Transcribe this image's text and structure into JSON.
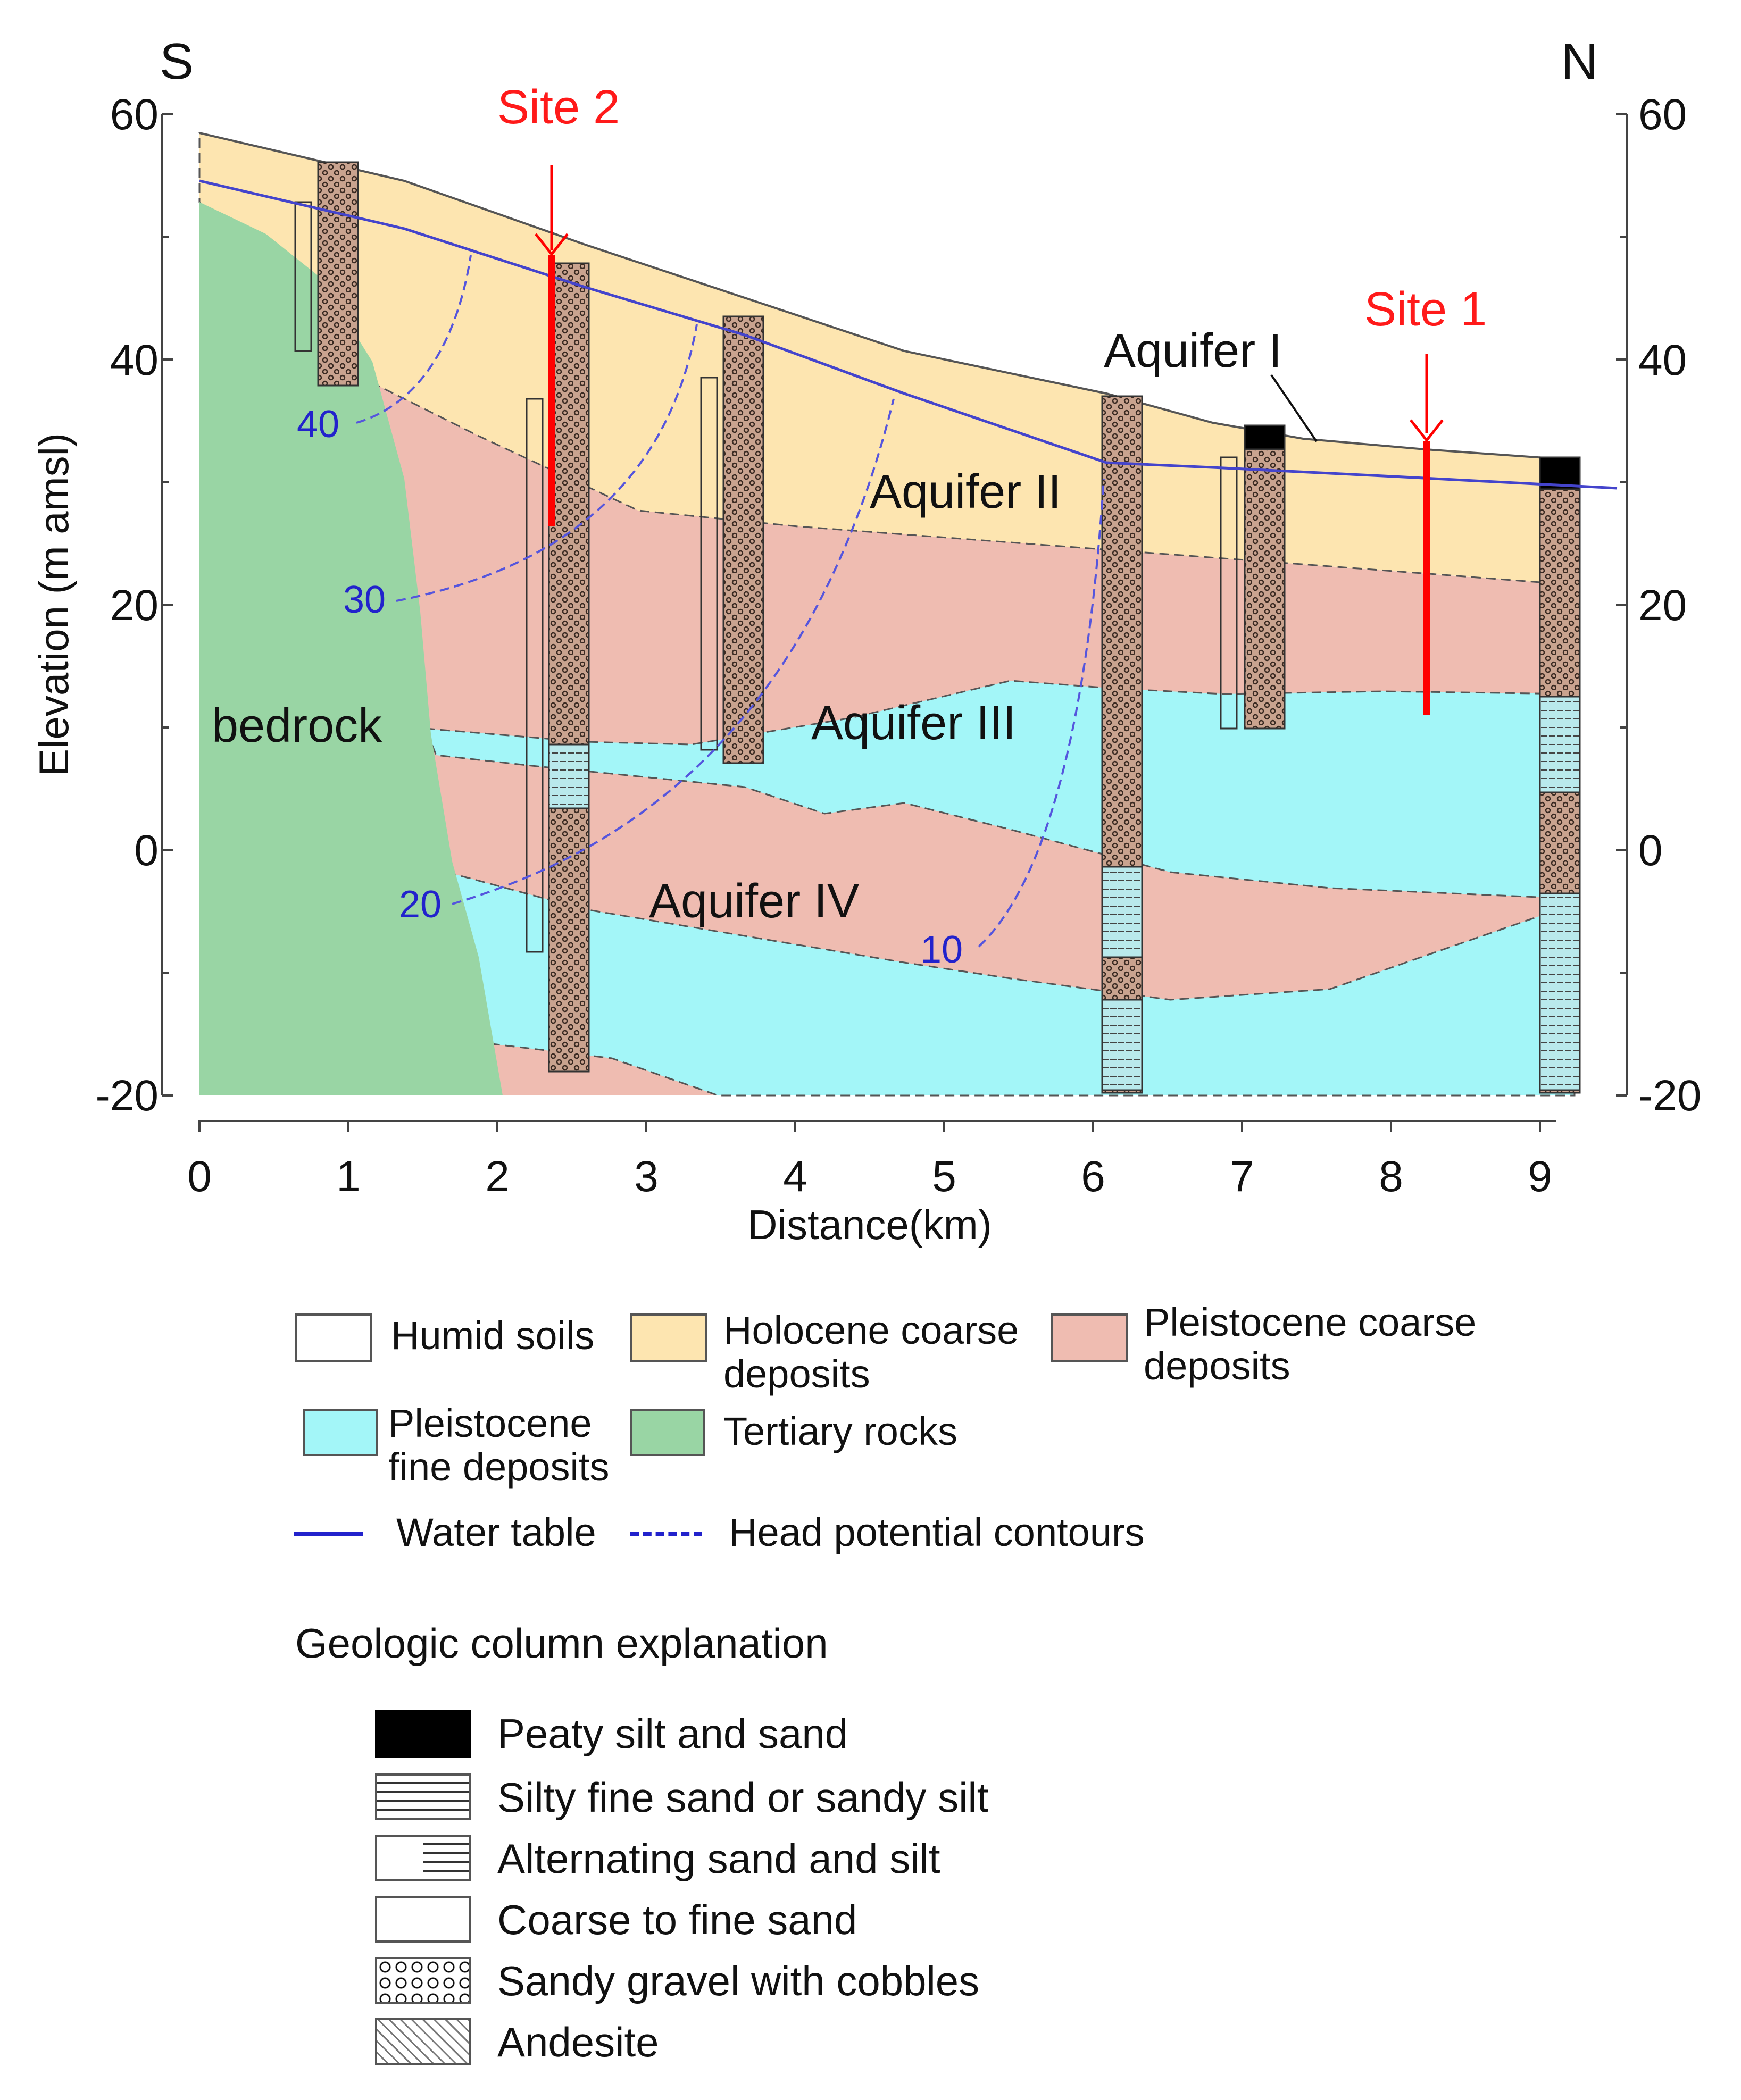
{
  "diagram": {
    "direction_left": "S",
    "direction_right": "N",
    "y_axis_label": "Elevation (m amsl)",
    "x_axis_label": "Distance(km)",
    "y_ticks_left": [
      "60",
      "40",
      "20",
      "0",
      "-20"
    ],
    "y_ticks_right": [
      "60",
      "40",
      "20",
      "0",
      "-20"
    ],
    "x_ticks": [
      "0",
      "1",
      "2",
      "3",
      "4",
      "5",
      "6",
      "7",
      "8",
      "9"
    ],
    "sites": {
      "site2": "Site 2",
      "site1": "Site 1"
    },
    "aquifers": {
      "a1": "Aquifer I",
      "a2": "Aquifer II",
      "a3": "Aquifer III",
      "a4": "Aquifer IV"
    },
    "bedrock_label": "bedrock",
    "contours": [
      "40",
      "30",
      "20",
      "10"
    ],
    "colors": {
      "holocene": "#fde5b0",
      "pleistocene_coarse": "#efbcb1",
      "pleistocene_fine": "#a3f6f8",
      "tertiary": "#99d5a4",
      "water_table": "#4444cc",
      "site_marker": "#ff0000"
    }
  },
  "legend": {
    "units": [
      {
        "label_l1": "Humid soils",
        "label_l2": ""
      },
      {
        "label_l1": "Holocene coarse",
        "label_l2": "deposits"
      },
      {
        "label_l1": "Pleistocene coarse",
        "label_l2": "deposits"
      },
      {
        "label_l1": "Pleistocene",
        "label_l2": "fine deposits"
      },
      {
        "label_l1": "Tertiary rocks",
        "label_l2": ""
      }
    ],
    "water_table": "Water table",
    "head_contours": "Head potential contours"
  },
  "column_legend": {
    "title": "Geologic column explanation",
    "items": [
      "Peaty silt and sand",
      "Silty fine sand or sandy silt",
      "Alternating sand and silt",
      "Coarse to fine sand",
      "Sandy gravel with cobbles",
      "Andesite"
    ]
  }
}
